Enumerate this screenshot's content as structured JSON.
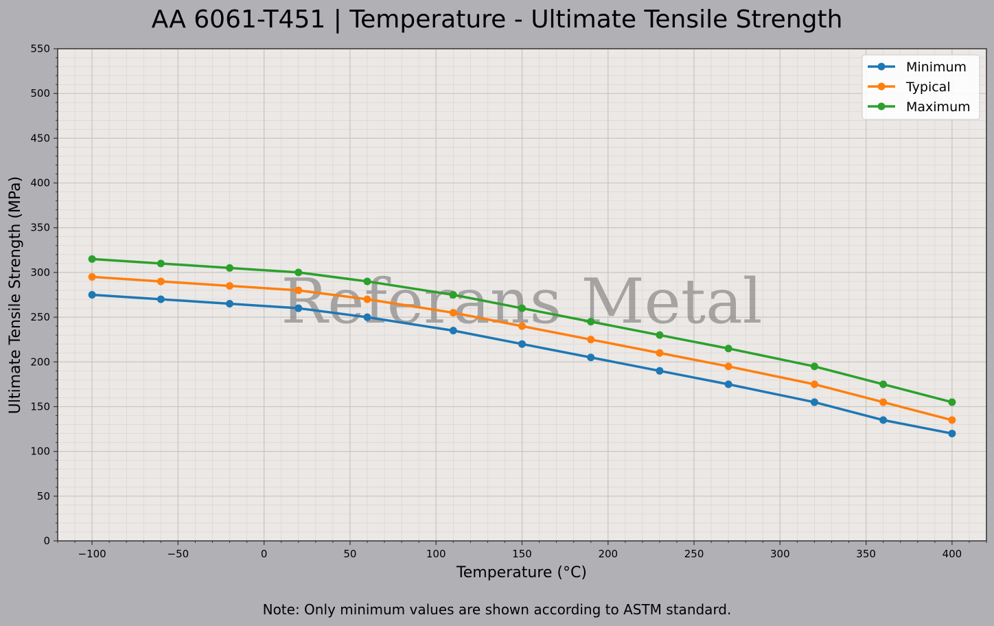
{
  "chart_data": {
    "type": "line",
    "title": "AA 6061-T451 | Temperature - Ultimate Tensile Strength",
    "xlabel": "Temperature (°C)",
    "ylabel": "Ultimate Tensile Strength (MPa)",
    "xlim": [
      -120,
      420
    ],
    "ylim": [
      0,
      550
    ],
    "x_ticks": [
      -100,
      -50,
      0,
      50,
      100,
      150,
      200,
      250,
      300,
      350,
      400
    ],
    "x_tick_labels": [
      "−100",
      "−50",
      "0",
      "50",
      "100",
      "150",
      "200",
      "250",
      "300",
      "350",
      "400"
    ],
    "y_ticks": [
      0,
      50,
      100,
      150,
      200,
      250,
      300,
      350,
      400,
      450,
      500,
      550
    ],
    "y_tick_labels": [
      "0",
      "50",
      "100",
      "150",
      "200",
      "250",
      "300",
      "350",
      "400",
      "450",
      "500",
      "550"
    ],
    "grid": true,
    "legend_position": "top-right",
    "x": [
      -100,
      -60,
      -20,
      20,
      60,
      110,
      150,
      190,
      230,
      270,
      320,
      360,
      400
    ],
    "series": [
      {
        "name": "Minimum",
        "color": "#1f77b4",
        "values": [
          275,
          270,
          265,
          260,
          250,
          235,
          220,
          205,
          190,
          175,
          155,
          135,
          120
        ]
      },
      {
        "name": "Typical",
        "color": "#ff7f0e",
        "values": [
          295,
          290,
          285,
          280,
          270,
          255,
          240,
          225,
          210,
          195,
          175,
          155,
          135
        ]
      },
      {
        "name": "Maximum",
        "color": "#2ca02c",
        "values": [
          315,
          310,
          305,
          300,
          290,
          275,
          260,
          245,
          230,
          215,
          195,
          175,
          155
        ]
      }
    ],
    "watermark": "Referans Metal",
    "note": "Note: Only minimum values are shown according to ASTM standard."
  }
}
